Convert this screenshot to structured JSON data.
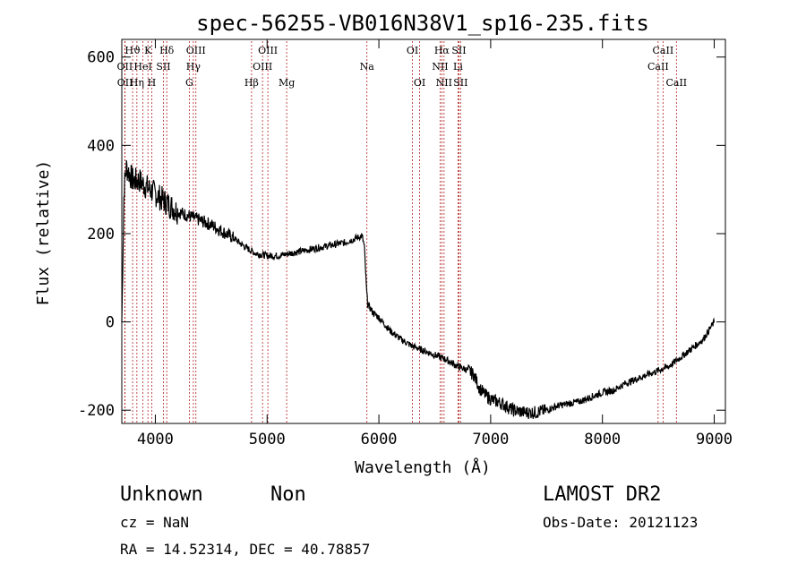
{
  "chart_data": {
    "type": "line",
    "title": "spec-56255-VB016N38V1_sp16-235.fits",
    "xlabel": "Wavelength (Å)",
    "ylabel": "Flux (relative)",
    "xlim": [
      3700,
      9100
    ],
    "ylim": [
      -230,
      640
    ],
    "xticks": [
      4000,
      5000,
      6000,
      7000,
      8000,
      9000
    ],
    "yticks": [
      -200,
      0,
      200,
      400,
      600
    ],
    "grid": false,
    "series": [
      {
        "name": "flux",
        "x": [
          3700,
          3720,
          3740,
          3760,
          3780,
          3800,
          3830,
          3860,
          3900,
          3950,
          4000,
          4050,
          4100,
          4200,
          4300,
          4400,
          4500,
          4600,
          4700,
          4800,
          4900,
          5000,
          5100,
          5200,
          5300,
          5400,
          5500,
          5600,
          5700,
          5800,
          5850,
          5870,
          5880,
          5890,
          5900,
          5950,
          6000,
          6100,
          6200,
          6300,
          6400,
          6500,
          6600,
          6700,
          6800,
          6850,
          6900,
          6950,
          7000,
          7100,
          7200,
          7300,
          7400,
          7500,
          7600,
          7700,
          7800,
          7900,
          8000,
          8100,
          8200,
          8300,
          8400,
          8500,
          8600,
          8700,
          8800,
          8900,
          8950,
          9000
        ],
        "y": [
          0,
          300,
          350,
          340,
          330,
          320,
          320,
          320,
          310,
          300,
          290,
          280,
          270,
          250,
          240,
          230,
          220,
          205,
          190,
          170,
          155,
          150,
          150,
          155,
          160,
          165,
          170,
          175,
          180,
          190,
          195,
          170,
          120,
          70,
          40,
          20,
          10,
          -20,
          -40,
          -55,
          -65,
          -75,
          -85,
          -100,
          -110,
          -120,
          -150,
          -165,
          -175,
          -185,
          -200,
          -205,
          -205,
          -200,
          -190,
          -185,
          -180,
          -170,
          -160,
          -155,
          -140,
          -130,
          -120,
          -110,
          -100,
          -80,
          -60,
          -40,
          -20,
          0
        ]
      }
    ],
    "line_labels": [
      {
        "label": "Hϑ",
        "x": 3797,
        "row": 0
      },
      {
        "label": "K",
        "x": 3934,
        "row": 0
      },
      {
        "label": "Hδ",
        "x": 4102,
        "row": 0
      },
      {
        "label": "OIII",
        "x": 4363,
        "row": 0
      },
      {
        "label": "OIII",
        "x": 5007,
        "row": 0
      },
      {
        "label": "OI",
        "x": 6300,
        "row": 0
      },
      {
        "label": "Hα",
        "x": 6563,
        "row": 0
      },
      {
        "label": "SII",
        "x": 6716,
        "row": 0
      },
      {
        "label": "CaII",
        "x": 8542,
        "row": 0
      },
      {
        "label": "OII",
        "x": 3727,
        "row": 1
      },
      {
        "label": "HeI",
        "x": 3889,
        "row": 1
      },
      {
        "label": "SII",
        "x": 4072,
        "row": 1
      },
      {
        "label": "Hγ",
        "x": 4340,
        "row": 1
      },
      {
        "label": "OIII",
        "x": 4959,
        "row": 1
      },
      {
        "label": "Na",
        "x": 5893,
        "row": 1
      },
      {
        "label": "NII",
        "x": 6548,
        "row": 1
      },
      {
        "label": "Li",
        "x": 6708,
        "row": 1
      },
      {
        "label": "CaII",
        "x": 8498,
        "row": 1
      },
      {
        "label": "OII",
        "x": 3729,
        "row": 2
      },
      {
        "label": "Hη",
        "x": 3835,
        "row": 2
      },
      {
        "label": "H",
        "x": 3968,
        "row": 2
      },
      {
        "label": "G",
        "x": 4304,
        "row": 2
      },
      {
        "label": "Hβ",
        "x": 4861,
        "row": 2
      },
      {
        "label": "Mg",
        "x": 5175,
        "row": 2
      },
      {
        "label": "OI",
        "x": 6364,
        "row": 2
      },
      {
        "label": "NII",
        "x": 6583,
        "row": 2
      },
      {
        "label": "SII",
        "x": 6731,
        "row": 2
      },
      {
        "label": "CaII",
        "x": 8662,
        "row": 2
      }
    ]
  },
  "info": {
    "classification": "Unknown",
    "subclass": "Non",
    "survey": "LAMOST DR2",
    "cz": "cz = NaN",
    "obs_date": "Obs-Date: 20121123",
    "coords": "RA =  14.52314, DEC =  40.78857"
  }
}
